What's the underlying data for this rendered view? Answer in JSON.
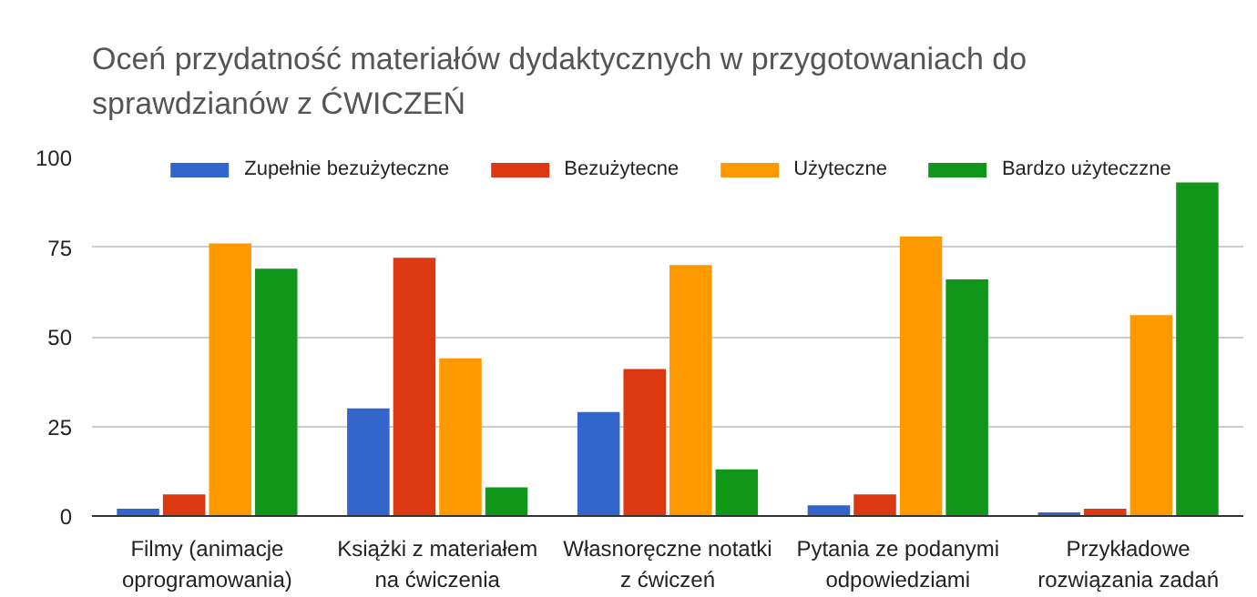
{
  "chart_data": {
    "type": "bar",
    "title": "Oceń przydatność materiałów dydaktycznych w przygotowaniach do sprawdzianów z ĆWICZEŃ",
    "categories": [
      "Filmy (animacje oprogramowania)",
      "Książki z materiałem na ćwiczenia",
      "Własnoręczne notatki z ćwiczeń",
      "Pytania ze podanymi odpowiedziami",
      "Przykładowe rozwiązania zadań"
    ],
    "series": [
      {
        "name": "Zupełnie bezużyteczne",
        "color": "#3366cc",
        "values": [
          2,
          30,
          29,
          3,
          1
        ]
      },
      {
        "name": "Bezużytecne",
        "color": "#dc3912",
        "values": [
          6,
          72,
          41,
          6,
          2
        ]
      },
      {
        "name": "Użyteczne",
        "color": "#ff9900",
        "values": [
          76,
          44,
          70,
          78,
          56
        ]
      },
      {
        "name": "Bardzo użyteczzne",
        "color": "#109618",
        "values": [
          69,
          8,
          13,
          66,
          93
        ]
      }
    ],
    "ylim": [
      0,
      100
    ],
    "yticks": [
      0,
      25,
      50,
      75,
      100
    ],
    "grid": "y",
    "legend": "top"
  }
}
